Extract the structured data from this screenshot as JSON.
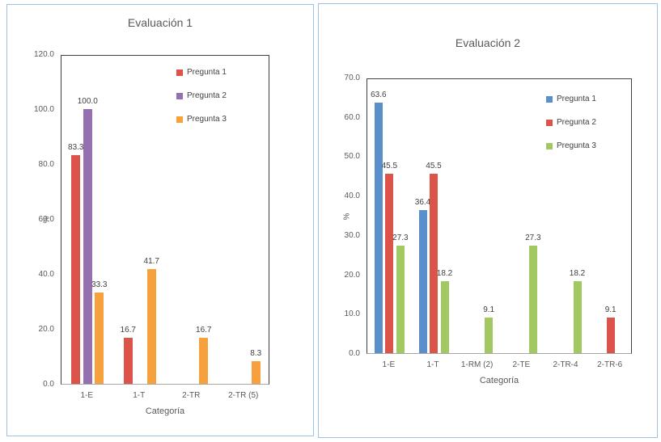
{
  "colors": {
    "panel_border": "#9CC2E5",
    "axis_text": "#595959",
    "data_label_text": "#404040"
  },
  "chart_data": [
    {
      "type": "bar",
      "title": "Evaluación 1",
      "xlabel": "Categoría",
      "ylabel": "%",
      "ylim": [
        0,
        120
      ],
      "ytick_step": 20,
      "yticks": [
        "120.0",
        "100.0",
        "80.0",
        "60.0",
        "40.0",
        "20.0",
        "0.0"
      ],
      "categories": [
        "1-E",
        "1-T",
        "2-TR",
        "2-TR (5)"
      ],
      "series": [
        {
          "name": "Pregunta 1",
          "color": "#DB5349",
          "values": [
            83.3,
            16.7,
            null,
            null
          ]
        },
        {
          "name": "Pregunta 2",
          "color": "#9470B0",
          "values": [
            100.0,
            null,
            null,
            null
          ]
        },
        {
          "name": "Pregunta 3",
          "color": "#F7A13C",
          "values": [
            33.3,
            41.7,
            16.7,
            8.3
          ]
        }
      ],
      "data_labels": true,
      "grid": false,
      "legend_position": "inside-top-right"
    },
    {
      "type": "bar",
      "title": "Evaluación 2",
      "xlabel": "Categoría",
      "ylabel": "%",
      "ylim": [
        0,
        70
      ],
      "ytick_step": 10,
      "yticks": [
        "70.0",
        "60.0",
        "50.0",
        "40.0",
        "30.0",
        "20.0",
        "10.0",
        "0.0"
      ],
      "categories": [
        "1-E",
        "1-T",
        "1-RM (2)",
        "2-TE",
        "2-TR-4",
        "2-TR-6"
      ],
      "series": [
        {
          "name": "Pregunta 1",
          "color": "#5B8FCB",
          "values": [
            63.6,
            36.4,
            null,
            null,
            null,
            null
          ]
        },
        {
          "name": "Pregunta 2",
          "color": "#DB5349",
          "values": [
            45.5,
            45.5,
            null,
            null,
            null,
            9.1
          ]
        },
        {
          "name": "Pregunta 3",
          "color": "#A1C861",
          "values": [
            27.3,
            18.2,
            9.1,
            27.3,
            18.2,
            null
          ]
        }
      ],
      "data_labels": true,
      "grid": false,
      "legend_position": "inside-top-right"
    }
  ]
}
